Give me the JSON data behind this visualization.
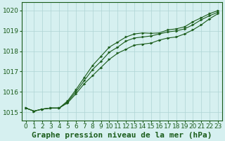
{
  "title": "Graphe pression niveau de la mer (hPa)",
  "bg_color": "#d6f0f0",
  "grid_color": "#aed4d4",
  "line_color": "#1a5c1a",
  "marker_color": "#1a5c1a",
  "xlim": [
    -0.5,
    23.5
  ],
  "ylim": [
    1014.6,
    1020.4
  ],
  "yticks": [
    1015,
    1016,
    1017,
    1018,
    1019,
    1020
  ],
  "xticks": [
    0,
    1,
    2,
    3,
    4,
    5,
    6,
    7,
    8,
    9,
    10,
    11,
    12,
    13,
    14,
    15,
    16,
    17,
    18,
    19,
    20,
    21,
    22,
    23
  ],
  "series": [
    [
      1015.2,
      1015.05,
      1015.15,
      1015.2,
      1015.2,
      1015.45,
      1015.9,
      1016.4,
      1016.8,
      1017.2,
      1017.6,
      1017.9,
      1018.1,
      1018.3,
      1018.35,
      1018.4,
      1018.55,
      1018.65,
      1018.7,
      1018.85,
      1019.05,
      1019.3,
      1019.6,
      1019.85
    ],
    [
      1015.2,
      1015.05,
      1015.15,
      1015.2,
      1015.2,
      1015.5,
      1016.0,
      1016.55,
      1017.1,
      1017.5,
      1017.95,
      1018.2,
      1018.5,
      1018.65,
      1018.7,
      1018.75,
      1018.85,
      1018.95,
      1019.0,
      1019.1,
      1019.3,
      1019.55,
      1019.75,
      1019.92
    ],
    [
      1015.2,
      1015.05,
      1015.15,
      1015.2,
      1015.2,
      1015.55,
      1016.1,
      1016.7,
      1017.3,
      1017.75,
      1018.2,
      1018.45,
      1018.7,
      1018.85,
      1018.9,
      1018.88,
      1018.9,
      1019.05,
      1019.1,
      1019.2,
      1019.45,
      1019.65,
      1019.85,
      1020.0
    ]
  ],
  "title_fontsize": 8,
  "tick_fontsize": 6.5,
  "title_color": "#1a5c1a",
  "label_color": "#1a5c1a"
}
